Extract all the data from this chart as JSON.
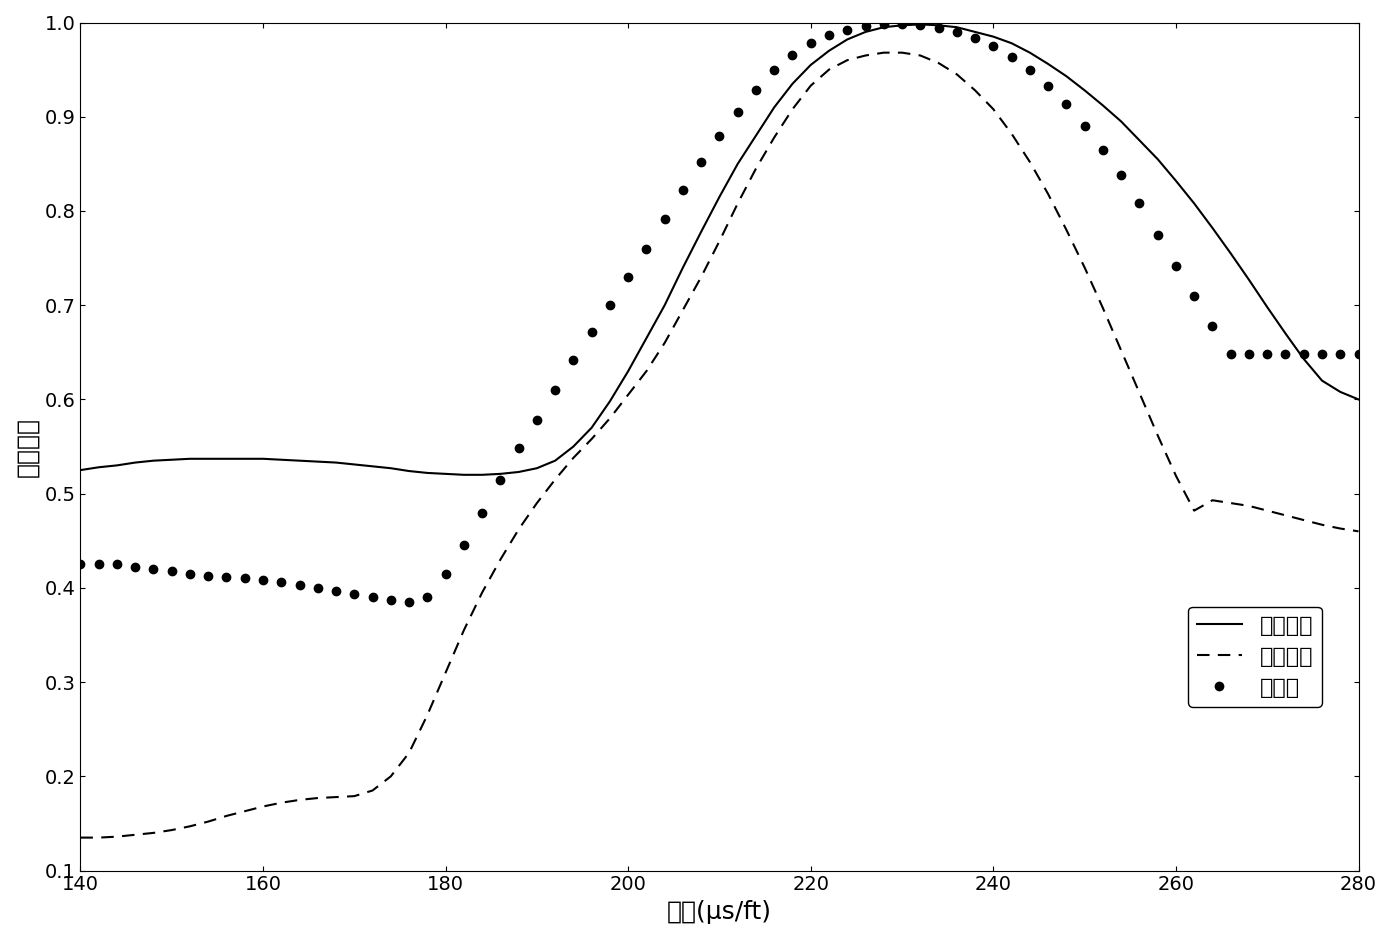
{
  "title": "",
  "xlabel": "慢度(μs/ft)",
  "ylabel": "相关系数",
  "xlim": [
    140,
    280
  ],
  "ylim": [
    0.1,
    1.0
  ],
  "xticks": [
    140,
    160,
    180,
    200,
    220,
    240,
    260,
    280
  ],
  "yticks": [
    0.1,
    0.2,
    0.3,
    0.4,
    0.5,
    0.6,
    0.7,
    0.8,
    0.9,
    1.0
  ],
  "line_color": "#000000",
  "dashed_color": "#000000",
  "dot_color": "#000000",
  "legend_labels": [
    "原来波形",
    "含反射波",
    "滤波后"
  ],
  "background_color": "#ffffff",
  "solid_x": [
    140,
    142,
    144,
    146,
    148,
    150,
    152,
    154,
    156,
    158,
    160,
    162,
    164,
    166,
    168,
    170,
    172,
    174,
    176,
    178,
    180,
    182,
    184,
    186,
    188,
    190,
    192,
    194,
    196,
    198,
    200,
    202,
    204,
    206,
    208,
    210,
    212,
    214,
    216,
    218,
    220,
    222,
    224,
    226,
    228,
    230,
    232,
    234,
    236,
    238,
    240,
    242,
    244,
    246,
    248,
    250,
    252,
    254,
    256,
    258,
    260,
    262,
    264,
    266,
    268,
    270,
    272,
    274,
    276,
    278,
    280
  ],
  "solid_y": [
    0.525,
    0.528,
    0.53,
    0.533,
    0.535,
    0.536,
    0.537,
    0.537,
    0.537,
    0.537,
    0.537,
    0.536,
    0.535,
    0.534,
    0.533,
    0.531,
    0.529,
    0.527,
    0.524,
    0.522,
    0.521,
    0.52,
    0.52,
    0.521,
    0.523,
    0.527,
    0.535,
    0.55,
    0.57,
    0.598,
    0.63,
    0.665,
    0.7,
    0.74,
    0.778,
    0.815,
    0.85,
    0.88,
    0.91,
    0.935,
    0.955,
    0.97,
    0.982,
    0.99,
    0.995,
    0.997,
    0.998,
    0.997,
    0.995,
    0.99,
    0.985,
    0.978,
    0.968,
    0.956,
    0.943,
    0.928,
    0.912,
    0.895,
    0.875,
    0.855,
    0.832,
    0.808,
    0.782,
    0.755,
    0.727,
    0.698,
    0.67,
    0.643,
    0.62,
    0.608,
    0.6
  ],
  "dashed_x": [
    140,
    142,
    144,
    146,
    148,
    150,
    152,
    154,
    156,
    158,
    160,
    162,
    164,
    166,
    168,
    170,
    172,
    174,
    176,
    178,
    180,
    182,
    184,
    186,
    188,
    190,
    192,
    194,
    196,
    198,
    200,
    202,
    204,
    206,
    208,
    210,
    212,
    214,
    216,
    218,
    220,
    222,
    224,
    226,
    228,
    230,
    232,
    234,
    236,
    238,
    240,
    242,
    244,
    246,
    248,
    250,
    252,
    254,
    256,
    258,
    260,
    262,
    264,
    266,
    268,
    270,
    272,
    274,
    276,
    278,
    280
  ],
  "dashed_y": [
    0.135,
    0.135,
    0.136,
    0.138,
    0.14,
    0.143,
    0.147,
    0.152,
    0.158,
    0.163,
    0.168,
    0.172,
    0.175,
    0.177,
    0.178,
    0.179,
    0.185,
    0.2,
    0.225,
    0.265,
    0.31,
    0.355,
    0.395,
    0.43,
    0.462,
    0.49,
    0.515,
    0.538,
    0.558,
    0.58,
    0.605,
    0.63,
    0.66,
    0.695,
    0.73,
    0.768,
    0.808,
    0.845,
    0.878,
    0.908,
    0.933,
    0.95,
    0.96,
    0.965,
    0.968,
    0.968,
    0.965,
    0.957,
    0.945,
    0.928,
    0.908,
    0.882,
    0.852,
    0.818,
    0.78,
    0.74,
    0.697,
    0.652,
    0.607,
    0.562,
    0.519,
    0.482,
    0.493,
    0.49,
    0.487,
    0.482,
    0.477,
    0.472,
    0.467,
    0.463,
    0.46
  ],
  "dot_x": [
    140,
    142,
    144,
    146,
    148,
    150,
    152,
    154,
    156,
    158,
    160,
    162,
    164,
    166,
    168,
    170,
    172,
    174,
    176,
    178,
    180,
    182,
    184,
    186,
    188,
    190,
    192,
    194,
    196,
    198,
    200,
    202,
    204,
    206,
    208,
    210,
    212,
    214,
    216,
    218,
    220,
    222,
    224,
    226,
    228,
    230,
    232,
    234,
    236,
    238,
    240,
    242,
    244,
    246,
    248,
    250,
    252,
    254,
    256,
    258,
    260,
    262,
    264,
    266,
    268,
    270,
    272,
    274,
    276,
    278,
    280
  ],
  "dot_y": [
    0.425,
    0.425,
    0.425,
    0.422,
    0.42,
    0.418,
    0.415,
    0.413,
    0.412,
    0.41,
    0.408,
    0.406,
    0.403,
    0.4,
    0.397,
    0.393,
    0.39,
    0.387,
    0.385,
    0.39,
    0.415,
    0.445,
    0.48,
    0.515,
    0.548,
    0.578,
    0.61,
    0.642,
    0.672,
    0.7,
    0.73,
    0.76,
    0.792,
    0.822,
    0.852,
    0.88,
    0.905,
    0.928,
    0.95,
    0.966,
    0.978,
    0.987,
    0.992,
    0.996,
    0.998,
    0.998,
    0.997,
    0.994,
    0.99,
    0.984,
    0.975,
    0.963,
    0.95,
    0.933,
    0.913,
    0.89,
    0.865,
    0.838,
    0.808,
    0.775,
    0.742,
    0.71,
    0.678,
    0.648,
    0.648,
    0.648,
    0.648,
    0.648,
    0.648,
    0.648,
    0.648
  ]
}
